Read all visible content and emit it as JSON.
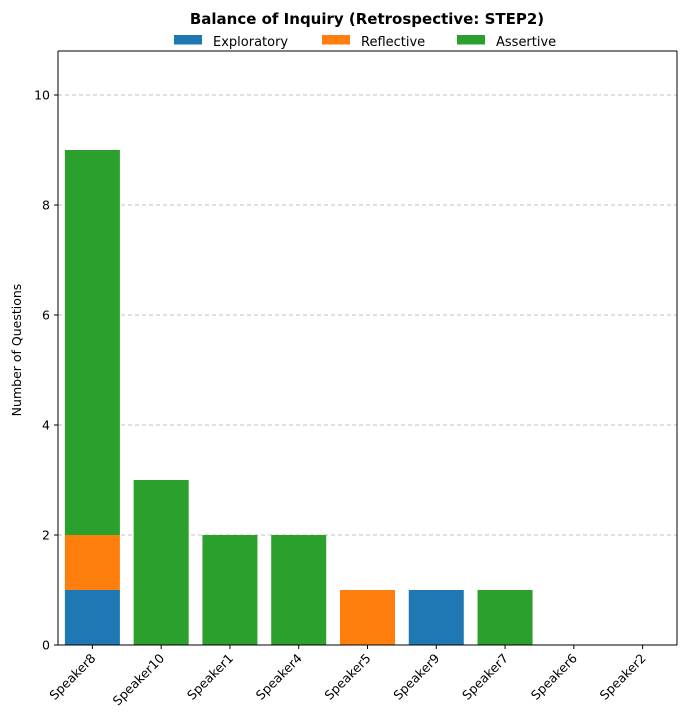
{
  "chart_data": {
    "type": "bar",
    "stacked": true,
    "title": "Balance of Inquiry (Retrospective: STEP2)",
    "xlabel": "",
    "ylabel": "Number of Questions",
    "categories": [
      "Speaker8",
      "Speaker10",
      "Speaker1",
      "Speaker4",
      "Speaker5",
      "Speaker9",
      "Speaker7",
      "Speaker6",
      "Speaker2"
    ],
    "series": [
      {
        "name": "Exploratory",
        "color": "#1f77b4",
        "values": [
          1,
          0,
          0,
          0,
          0,
          1,
          0,
          0,
          0
        ]
      },
      {
        "name": "Reflective",
        "color": "#ff7f0e",
        "values": [
          1,
          0,
          0,
          0,
          1,
          0,
          0,
          0,
          0
        ]
      },
      {
        "name": "Assertive",
        "color": "#2ca02c",
        "values": [
          7,
          3,
          2,
          2,
          0,
          0,
          1,
          0,
          0
        ]
      }
    ],
    "ylim": [
      0,
      10.8
    ],
    "yticks": [
      0,
      2,
      4,
      6,
      8,
      10
    ],
    "grid": "y-dashed",
    "legend_position": "top-center"
  }
}
